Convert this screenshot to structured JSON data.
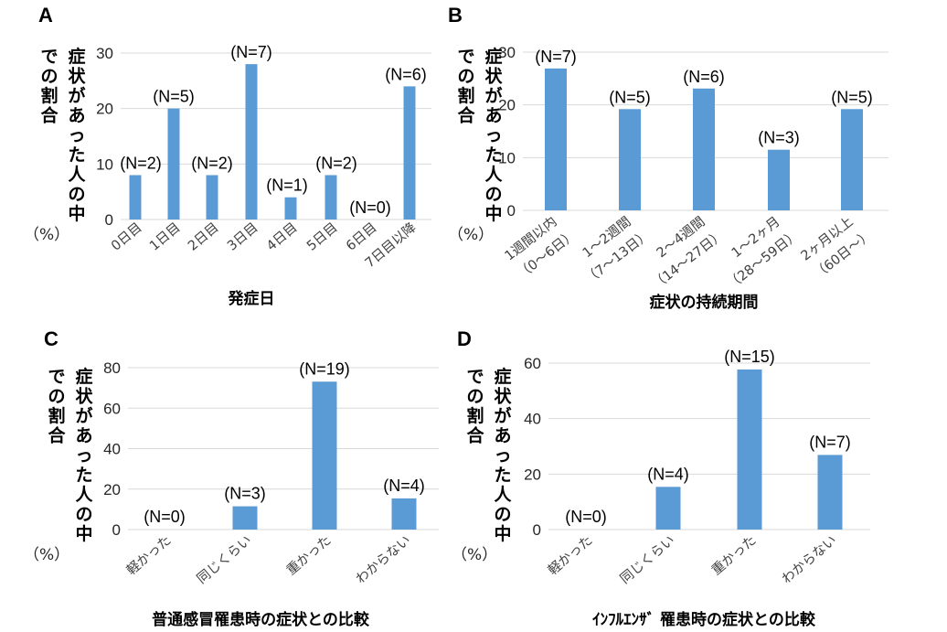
{
  "chart_data": [
    {
      "panel": "A",
      "type": "bar",
      "title": "",
      "xlabel": "発症日",
      "ylabel": "症状があった人の中での割合",
      "y_unit": "（%）",
      "ylim": [
        0,
        30
      ],
      "yticks": [
        0,
        10,
        20,
        30
      ],
      "grid": true,
      "categories": [
        "0日目",
        "1日目",
        "2日目",
        "3日目",
        "4日目",
        "5日目",
        "6日目",
        "7日目以降"
      ],
      "values": [
        8,
        20,
        8,
        28,
        4,
        8,
        0,
        24
      ],
      "data_labels": [
        "(N=2)",
        "(N=5)",
        "(N=2)",
        "(N=7)",
        "(N=1)",
        "(N=2)",
        "(N=0)",
        "(N=6)"
      ],
      "color": "#5b9bd5"
    },
    {
      "panel": "B",
      "type": "bar",
      "title": "",
      "xlabel": "症状の持続期間",
      "ylabel": "症状があった人の中での割合",
      "y_unit": "（%）",
      "ylim": [
        0,
        30
      ],
      "yticks": [
        0,
        10,
        20,
        30
      ],
      "grid": true,
      "categories": [
        [
          "1週間以内",
          "（0〜6日）"
        ],
        [
          "1〜2週間",
          "（7〜13日）"
        ],
        [
          "2〜4週間",
          "（14〜27日）"
        ],
        [
          "1〜2ヶ月",
          "（28〜59日）"
        ],
        [
          "2ヶ月以上",
          "（60日〜）"
        ]
      ],
      "values": [
        26.9,
        19.2,
        23.1,
        11.5,
        19.2
      ],
      "data_labels": [
        "(N=7)",
        "(N=5)",
        "(N=6)",
        "(N=3)",
        "(N=5)"
      ],
      "color": "#5b9bd5"
    },
    {
      "panel": "C",
      "type": "bar",
      "title": "",
      "xlabel": "普通感冒罹患時の症状との比較",
      "ylabel": "症状があった人の中での割合",
      "y_unit": "（%）",
      "ylim": [
        0,
        80
      ],
      "yticks": [
        0,
        20,
        40,
        60,
        80
      ],
      "grid": true,
      "categories": [
        "軽かった",
        "同じくらい",
        "重かった",
        "わからない"
      ],
      "values": [
        0,
        11.5,
        73.1,
        15.4
      ],
      "data_labels": [
        "(N=0)",
        "(N=3)",
        "(N=19)",
        "(N=4)"
      ],
      "color": "#5b9bd5"
    },
    {
      "panel": "D",
      "type": "bar",
      "title": "",
      "xlabel": "ｲﾝﾌﾙｴﾝｻﾞ 罹患時の症状との比較",
      "ylabel": "症状があった人の中での割合",
      "y_unit": "（%）",
      "ylim": [
        0,
        60
      ],
      "yticks": [
        0,
        20,
        40,
        60
      ],
      "grid": true,
      "categories": [
        "軽かった",
        "同じくらい",
        "重かった",
        "わからない"
      ],
      "values": [
        0,
        15.4,
        57.7,
        26.9
      ],
      "data_labels": [
        "(N=0)",
        "(N=4)",
        "(N=15)",
        "(N=7)"
      ],
      "color": "#5b9bd5"
    }
  ],
  "ylabel_lines": [
    "症状があった人の中",
    "での割合"
  ]
}
